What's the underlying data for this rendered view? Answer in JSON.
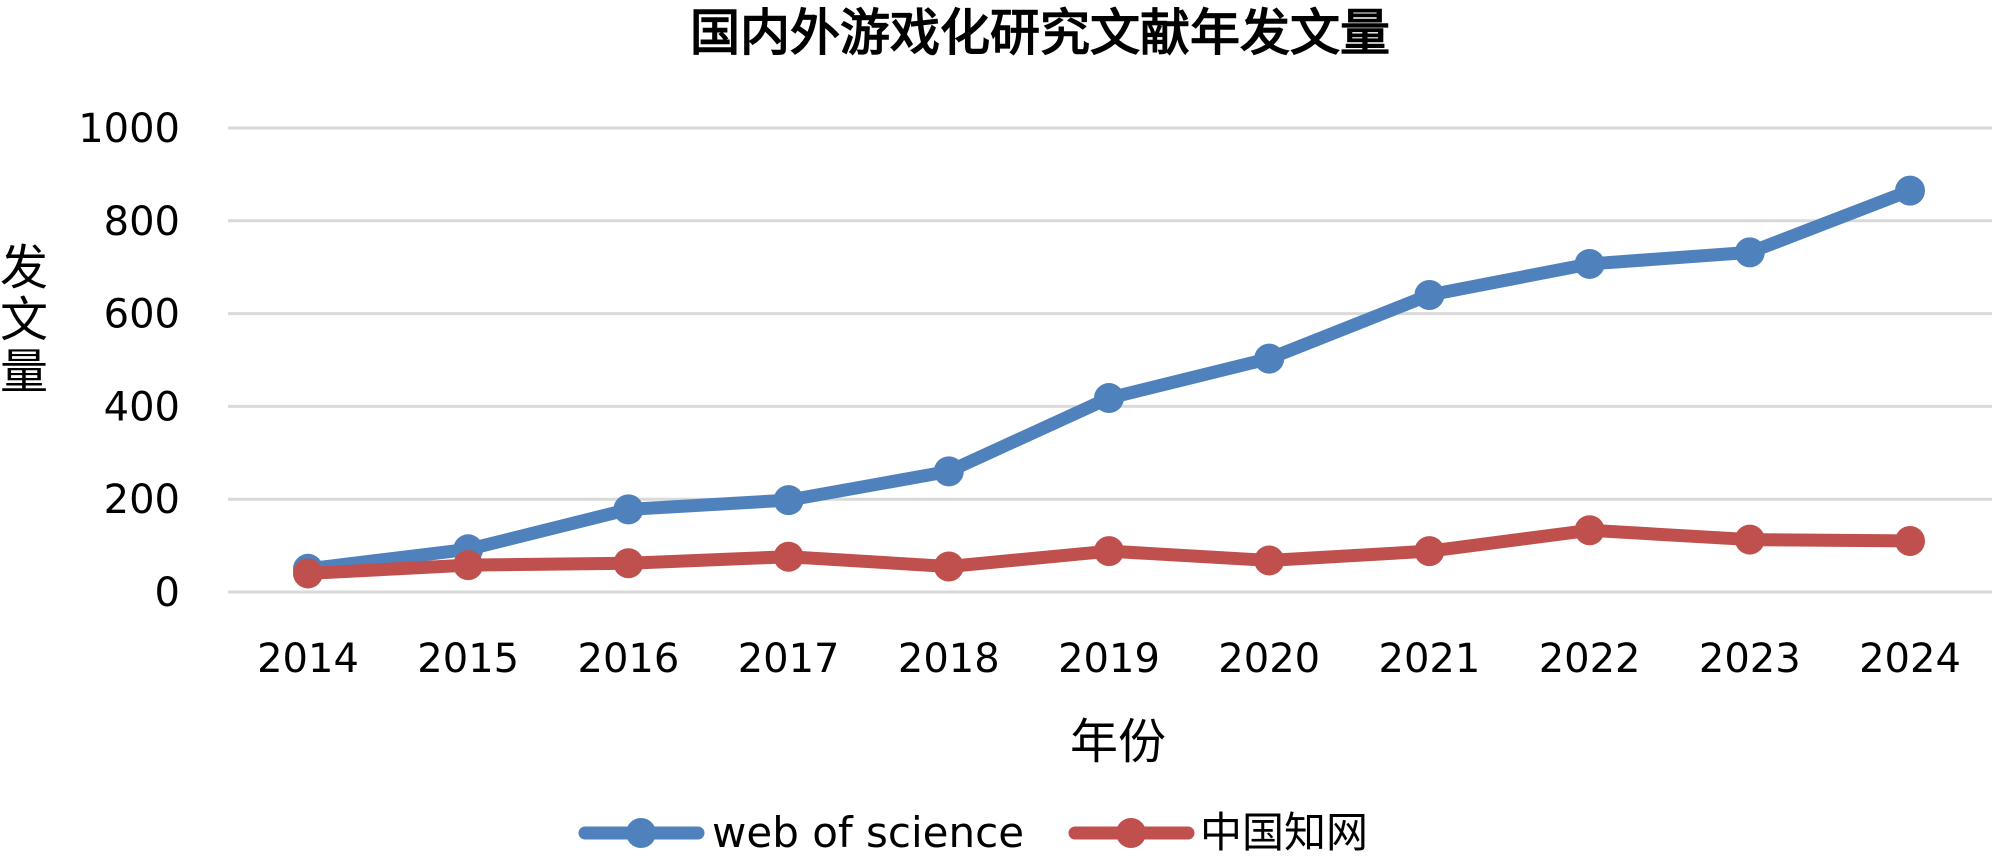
{
  "chart_data": {
    "type": "line",
    "title": "国内外游戏化研究文献年发文量",
    "xlabel": "年份",
    "ylabel": "发文量",
    "categories": [
      "2014",
      "2015",
      "2016",
      "2017",
      "2018",
      "2019",
      "2020",
      "2021",
      "2022",
      "2023",
      "2024"
    ],
    "ylim": [
      0,
      1000
    ],
    "yticks": [
      "0",
      "200",
      "400",
      "600",
      "800",
      "1000"
    ],
    "ytick_values": [
      0,
      200,
      400,
      600,
      800,
      1000
    ],
    "grid": true,
    "legend_position": "bottom",
    "series": [
      {
        "name": "web of science",
        "color": "#4f81bd",
        "values": [
          50,
          92,
          178,
          198,
          260,
          418,
          503,
          640,
          707,
          732,
          865
        ]
      },
      {
        "name": "中国知网",
        "color": "#c0504d",
        "values": [
          40,
          58,
          62,
          76,
          55,
          88,
          68,
          88,
          133,
          113,
          110
        ]
      }
    ]
  }
}
